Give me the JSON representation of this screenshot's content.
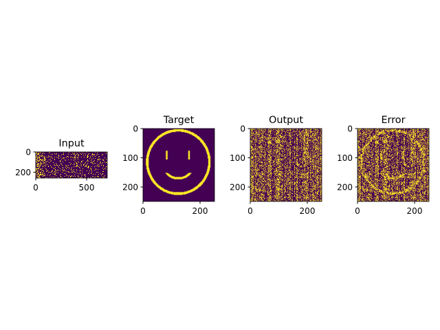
{
  "colors": {
    "background": "#440154",
    "foreground": "#fde725"
  },
  "chart_data": [
    {
      "type": "heatmap",
      "title": "Input",
      "shape": [
        256,
        700
      ],
      "xticks": [
        0,
        500
      ],
      "yticks": [
        0,
        200
      ],
      "xlim": [
        0,
        700
      ],
      "ylim": [
        256,
        0
      ],
      "pattern": "dense binary noise concentrated near x=0, sparse random dots elsewhere"
    },
    {
      "type": "heatmap",
      "title": "Target",
      "shape": [
        250,
        250
      ],
      "xticks": [
        0,
        200
      ],
      "yticks": [
        0,
        100,
        200
      ],
      "xlim": [
        0,
        250
      ],
      "ylim": [
        250,
        0
      ],
      "pattern": "smiley face"
    },
    {
      "type": "heatmap",
      "title": "Output",
      "shape": [
        250,
        250
      ],
      "xticks": [
        0,
        200
      ],
      "yticks": [
        0,
        100,
        200
      ],
      "xlim": [
        0,
        250
      ],
      "ylim": [
        250,
        0
      ],
      "pattern": "vertical striped binary noise"
    },
    {
      "type": "heatmap",
      "title": "Error",
      "shape": [
        250,
        250
      ],
      "xticks": [
        0,
        200
      ],
      "yticks": [
        0,
        100,
        200
      ],
      "xlim": [
        0,
        250
      ],
      "ylim": [
        250,
        0
      ],
      "pattern": "xor of target smiley and output noise"
    }
  ]
}
